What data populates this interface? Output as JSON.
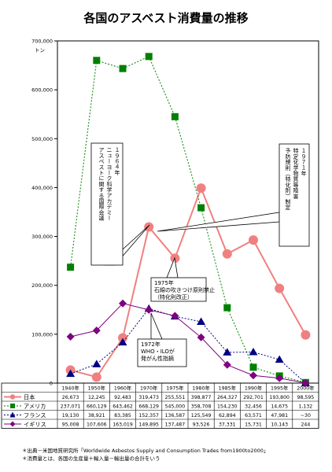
{
  "page_title": "各国のアスベスト消費量の推移",
  "chart_data": {
    "type": "line",
    "title": "各国のアスベスト消費量の推移",
    "ylabel": "トン",
    "ylim": [
      0,
      700000
    ],
    "y_ticks": [
      "700,000",
      "600,000",
      "500,000",
      "400,000",
      "300,000",
      "200,000",
      "100,000",
      "0"
    ],
    "y_tick_values": [
      700000,
      600000,
      500000,
      400000,
      300000,
      200000,
      100000,
      0
    ],
    "categories": [
      "1940年",
      "1950年",
      "1960年",
      "1970年",
      "1975年",
      "1980年",
      "1985年",
      "1990年",
      "1995年",
      "2000年"
    ],
    "series": [
      {
        "name": "日本",
        "color": "#f08080",
        "marker": "circle",
        "dash": "solid",
        "values": [
          26673,
          12245,
          92483,
          319473,
          255551,
          398877,
          264327,
          292701,
          193800,
          98595
        ],
        "table": [
          "26,673",
          "12,245",
          "92,483",
          "319,473",
          "255,551",
          "398,877",
          "264,327",
          "292,701",
          "193,800",
          "98,595"
        ]
      },
      {
        "name": "アメリカ",
        "color": "#008000",
        "marker": "square",
        "dash": "dotted",
        "values": [
          237071,
          660129,
          643462,
          668129,
          545000,
          358708,
          154230,
          32456,
          14675,
          1132
        ],
        "table": [
          "237,071",
          "660,129",
          "643,462",
          "668,129",
          "545,000",
          "358,708",
          "154,230",
          "32,456",
          "14,675",
          "1,132"
        ]
      },
      {
        "name": "フランス",
        "color": "#000080",
        "marker": "triangle",
        "dash": "dotted",
        "values": [
          19130,
          38921,
          83385,
          152357,
          136587,
          125549,
          62894,
          63571,
          47981,
          30
        ],
        "table": [
          "19,130",
          "38,921",
          "83,385",
          "152,357",
          "136,587",
          "125,549",
          "62,894",
          "63,571",
          "47,981",
          "~30"
        ]
      },
      {
        "name": "イギリス",
        "color": "#800080",
        "marker": "diamond",
        "dash": "solid",
        "values": [
          95008,
          107606,
          163019,
          149895,
          137487,
          93526,
          37331,
          15731,
          10143,
          244
        ],
        "table": [
          "95,008",
          "107,606",
          "163,019",
          "149,895",
          "137,487",
          "93,526",
          "37,331",
          "15,731",
          "10,143",
          "244"
        ]
      }
    ],
    "annotations": [
      {
        "id": "ny1964",
        "lines": [
          "１９６４年",
          "ニューヨーク科学アカデミー",
          "アスベストに関する国際会議"
        ]
      },
      {
        "id": "toku1971",
        "lines": [
          "１９７１年",
          "特定化学物質等障害",
          "予防規則（特化則）制定"
        ]
      },
      {
        "id": "y1975",
        "lines": [
          "1975年",
          "石綿の吹きつけ原則禁止",
          "（特化則改正）"
        ]
      },
      {
        "id": "y1972",
        "lines": [
          "1972年",
          "WHO・ILOが",
          "発がん性指摘"
        ]
      }
    ],
    "grid": false
  },
  "footnotes": [
    "＊出典－米国地質研究所「Worldwide Asbestos Supply and Consumption Trades from1900to2000」",
    "＊消費量とは、各国の生産量＋輸入量－輸出量の合計をいう"
  ]
}
